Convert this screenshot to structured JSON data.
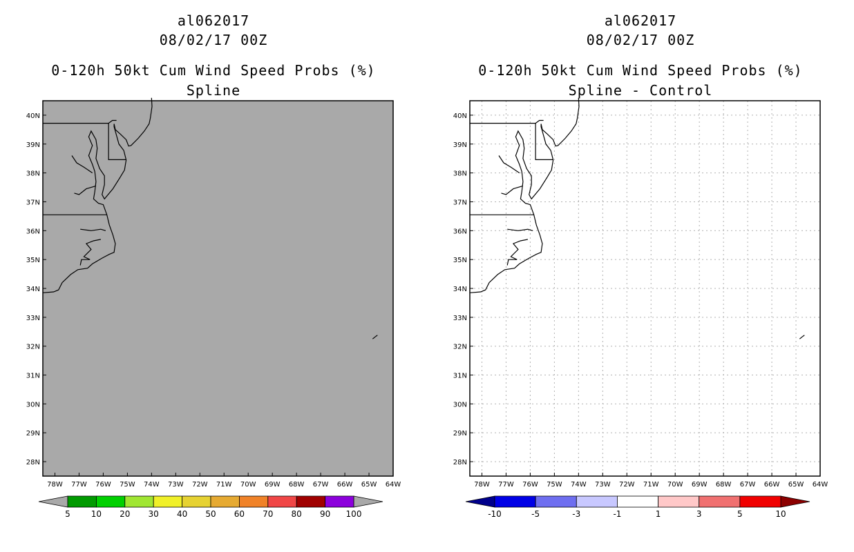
{
  "panels": [
    {
      "id": "spline",
      "storm_id": "al062017",
      "datetime": "08/02/17 00Z",
      "title": "0-120h 50kt Cum Wind Speed Probs (%)",
      "subtitle": "Spline",
      "map_fill": "#a9a9a9",
      "show_grid": false,
      "colorbar": {
        "low_arrow_color": "#a9a9a9",
        "high_arrow_color": "#a9a9a9",
        "colors": [
          "#009a00",
          "#00d000",
          "#a0e632",
          "#f0f028",
          "#e6d232",
          "#e6aa32",
          "#f08228",
          "#f04646",
          "#a00000",
          "#8c00dc"
        ],
        "labels": [
          "5",
          "10",
          "20",
          "30",
          "40",
          "50",
          "60",
          "70",
          "80",
          "90",
          "100"
        ]
      }
    },
    {
      "id": "spline-control",
      "storm_id": "al062017",
      "datetime": "08/02/17 00Z",
      "title": "0-120h 50kt Cum Wind Speed Probs (%)",
      "subtitle": "Spline - Control",
      "map_fill": "#ffffff",
      "show_grid": true,
      "colorbar": {
        "low_arrow_color": "#00008c",
        "high_arrow_color": "#8c0000",
        "colors": [
          "#0000e6",
          "#6e6ef0",
          "#c8c8ff",
          "#ffffff",
          "#ffc8c8",
          "#f07070",
          "#f00000"
        ],
        "labels": [
          "-10",
          "-5",
          "-3",
          "-1",
          "1",
          "3",
          "5",
          "10"
        ]
      }
    }
  ],
  "map": {
    "lat_labels": [
      "40N",
      "39N",
      "38N",
      "37N",
      "36N",
      "35N",
      "34N",
      "33N",
      "32N",
      "31N",
      "30N",
      "29N",
      "28N"
    ],
    "lat_values": [
      40,
      39,
      38,
      37,
      36,
      35,
      34,
      33,
      32,
      31,
      30,
      29,
      28
    ],
    "lon_labels": [
      "78W",
      "77W",
      "76W",
      "75W",
      "74W",
      "73W",
      "72W",
      "71W",
      "70W",
      "69W",
      "68W",
      "67W",
      "66W",
      "65W",
      "64W"
    ],
    "lon_values": [
      -78,
      -77,
      -76,
      -75,
      -74,
      -73,
      -72,
      -71,
      -70,
      -69,
      -68,
      -67,
      -66,
      -65,
      -64
    ],
    "lat_range": [
      27.5,
      40.5
    ],
    "lon_range": [
      -78.5,
      -64
    ],
    "coastline_color": "#000000"
  }
}
